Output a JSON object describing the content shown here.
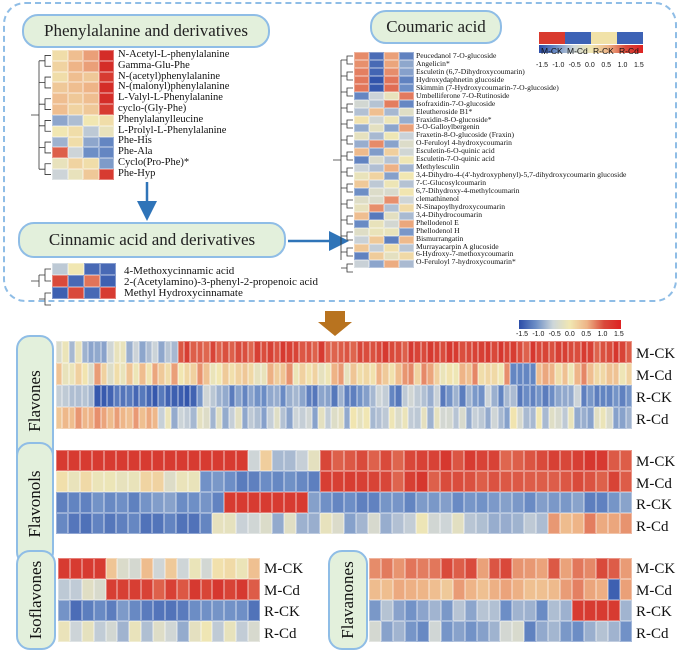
{
  "panels": {
    "phenylalanine": {
      "title": "Phenylalanine and derivatives",
      "compounds": [
        "N-Acetyl-L-phenylalanine",
        "Gamma-Glu-Phe",
        "N-(acetyl)phenylalanine",
        "N-(malonyl)phenylalanine",
        "L-Valyl-L-Phenylalanine",
        "cyclo-(Gly-Phe)",
        "Phenylalanylleucine",
        "L-Prolyl-L-Phenylalanine",
        "Phe-His",
        "Phe-Ala",
        "Cyclo(Pro-Phe)*",
        "Phe-Hyp"
      ]
    },
    "coumaric": {
      "title": "Coumaric acid",
      "compounds": [
        "Peucedanol 7-O-glucoside",
        "Angelicin*",
        "Esculetin (6,7-Dihydroxycoumarin)",
        "Hydroxydaphnetin glucoside",
        "Skimmin (7-Hydroxycoumarin-7-O-glucoside)",
        "Umbelliferone 7-O-Rutinoside",
        "Isofraxidin-7-O-glucoside",
        "Eleutheroside B1*",
        "Fraxidin-8-O-glucoside*",
        "3-O-Galloylbergenin",
        "Fraxetin-8-O-glucoside (Fraxin)",
        "O-Feruloyl 4-hydroxycoumarin",
        "Esculetin-6-O-quinic acid",
        "Esculetin-7-O-quinic acid",
        "Methylesculin",
        "3,4-Dihydro-4-(4'-hydroxyphenyl)-5,7-dihydroxycoumarin glucoside",
        "7-C-Glucosylcoumarin",
        "6,7-Dihydroxy-4-methylcoumarin",
        "clemathinenol",
        "N-Sinapoylhydroxycoumarin",
        "3,4-Dihydrocoumarin",
        "Phellodenol E",
        "Phellodenol H",
        "Bismurrangatin",
        "Murrayacarpin A glucoside",
        "6-Hydroxy-7-methoxycoumarin",
        "O-Feruloyl 7-hydroxycoumarin*"
      ]
    },
    "cinnamic": {
      "title": "Cinnamic acid and derivatives",
      "compounds": [
        "4-Methoxycinnamic acid",
        "2-(Acetylamino)-3-phenyl-2-propenoic acid",
        "Methyl Hydroxycinnamate"
      ]
    },
    "flavones": {
      "title": "Flavones"
    },
    "flavonols": {
      "title": "Flavonols"
    },
    "isoflavones": {
      "title": "Isoflavones"
    },
    "flavanones": {
      "title": "Flavanones"
    }
  },
  "samples": [
    "M-CK",
    "M-Cd",
    "R-CK",
    "R-Cd"
  ],
  "legend": {
    "ticks": [
      "-1.5",
      "-1.0",
      "-0.5",
      "0.0",
      "0.5",
      "1.0",
      "1.5"
    ],
    "group_labels": [
      "M-CK",
      "M-Cd",
      "R-CK",
      "R-Cd"
    ],
    "group_colors": [
      "#d93a2e",
      "#3d62b5",
      "#f1e2a8",
      "#3d62b5"
    ]
  },
  "colors": {
    "high": "#d22",
    "low": "#2b4da8",
    "mid": "#e8e3c9",
    "border": "#8fbde6",
    "pill": "#e3f0dc",
    "arrow": "#2f74b8",
    "down_arrow": "#b8731f"
  }
}
